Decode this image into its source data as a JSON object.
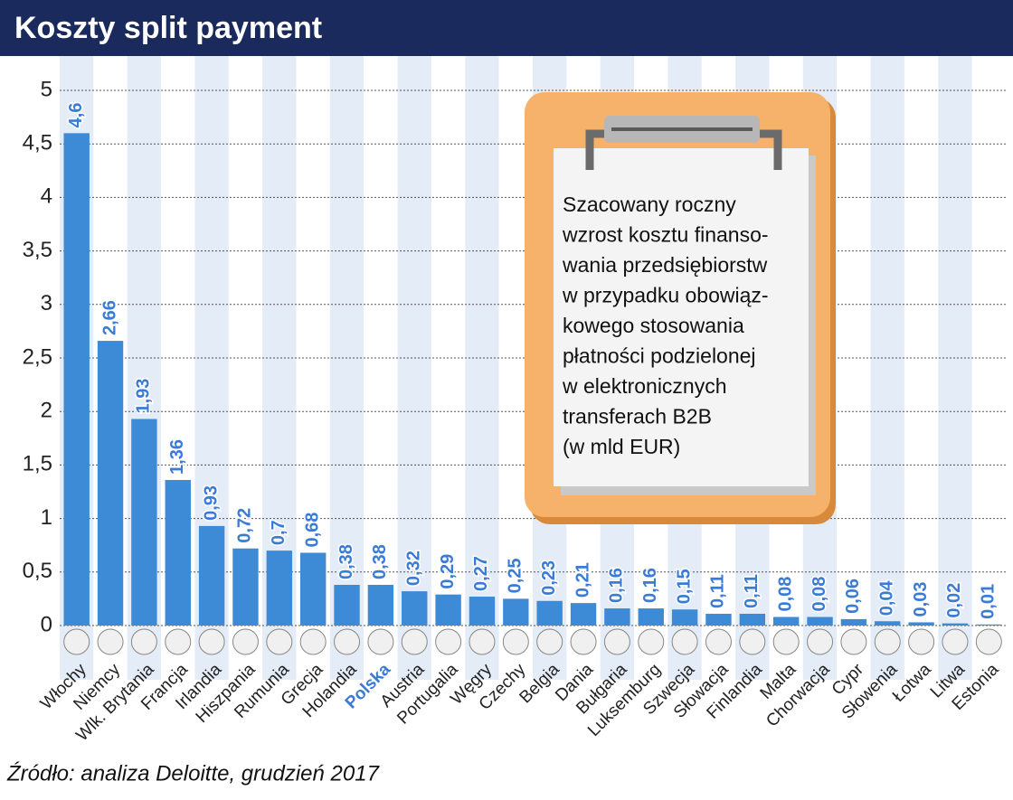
{
  "chart_data": {
    "type": "bar",
    "title": "Koszty split payment",
    "categories": [
      "Włochy",
      "Niemcy",
      "Wlk. Brytania",
      "Francja",
      "Irlandia",
      "Hiszpania",
      "Rumunia",
      "Grecja",
      "Holandia",
      "Polska",
      "Austria",
      "Portugalia",
      "Węgry",
      "Czechy",
      "Belgia",
      "Dania",
      "Bułgaria",
      "Luksemburg",
      "Szwecja",
      "Słowacja",
      "Finlandia",
      "Malta",
      "Chorwacja",
      "Cypr",
      "Słowenia",
      "Łotwa",
      "Litwa",
      "Estonia"
    ],
    "values": [
      4.6,
      2.66,
      1.93,
      1.36,
      0.93,
      0.72,
      0.7,
      0.68,
      0.38,
      0.38,
      0.32,
      0.29,
      0.27,
      0.25,
      0.23,
      0.21,
      0.16,
      0.16,
      0.15,
      0.11,
      0.11,
      0.08,
      0.08,
      0.06,
      0.04,
      0.03,
      0.02,
      0.01
    ],
    "value_labels": [
      "4,6",
      "2,66",
      "1,93",
      "1,36",
      "0,93",
      "0,72",
      "0,7",
      "0,68",
      "0,38",
      "0,38",
      "0,32",
      "0,29",
      "0,27",
      "0,25",
      "0,23",
      "0,21",
      "0,16",
      "0,16",
      "0,15",
      "0,11",
      "0,11",
      "0,08",
      "0,08",
      "0,06",
      "0,04",
      "0,03",
      "0,02",
      "0,01"
    ],
    "color": "#3d8ad6",
    "highlight": "Polska",
    "ylim": [
      0,
      5
    ],
    "yticks": [
      0,
      {
        "value": 0.5,
        "label": "0,5"
      },
      1,
      {
        "value": 1.5,
        "label": "1,5"
      },
      2,
      {
        "value": 2.5,
        "label": "2,5"
      },
      3,
      {
        "value": 3.5,
        "label": "3,5"
      },
      4,
      {
        "value": 4.5,
        "label": "4,5"
      },
      5
    ],
    "grid": true,
    "note_lines": [
      "Szacowany roczny",
      "wzrost kosztu finanso-",
      "wania przedsiębiorstw",
      "w przypadku obowiąz-",
      "kowego stosowania",
      "płatności podzielonej",
      "w elektronicznych",
      "transferach B2B",
      "(w mld EUR)"
    ],
    "source": "Źródło: analiza Deloitte, grudzień 2017"
  }
}
